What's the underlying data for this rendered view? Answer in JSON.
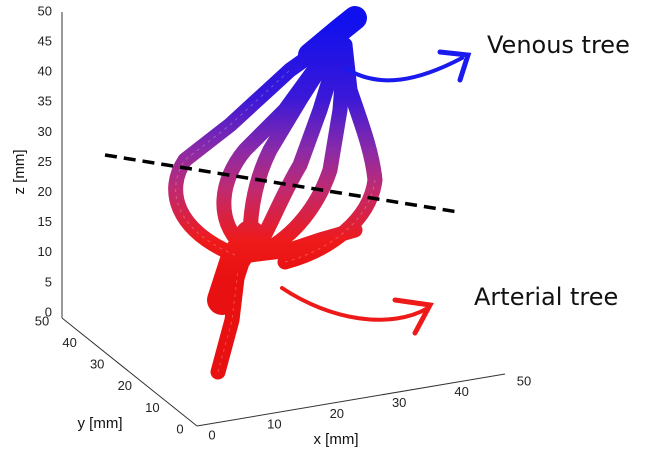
{
  "figure": {
    "z_ticks": [
      50,
      45,
      40,
      35,
      30,
      25,
      20,
      15,
      10,
      5,
      0
    ],
    "y_ticks": [
      50,
      40,
      30,
      20,
      10,
      0
    ],
    "x_ticks": [
      0,
      10,
      20,
      30,
      40,
      50
    ],
    "z_label": "z [mm]",
    "y_label": "y [mm]",
    "x_label": "x [mm]",
    "annotations": {
      "venous": "Venous tree",
      "arterial": "Arterial tree"
    }
  }
}
